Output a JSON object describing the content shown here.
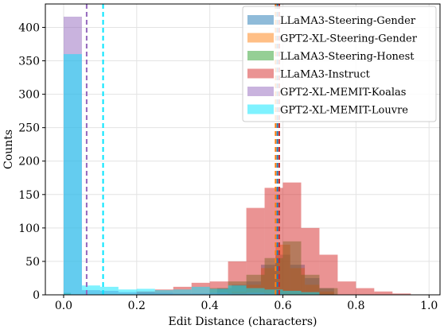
{
  "chart_data": {
    "type": "bar",
    "xlabel": "Edit Distance (characters)",
    "ylabel": "Counts",
    "xlim": [
      -0.05,
      1.03
    ],
    "ylim": [
      0,
      435
    ],
    "xticks": [
      0.0,
      0.2,
      0.4,
      0.6,
      0.8,
      1.0
    ],
    "xtick_labels": [
      "0.0",
      "0.2",
      "0.4",
      "0.6",
      "0.8",
      "1.0"
    ],
    "yticks": [
      0,
      50,
      100,
      150,
      200,
      250,
      300,
      350,
      400
    ],
    "ytick_labels": [
      "0",
      "50",
      "100",
      "150",
      "200",
      "250",
      "300",
      "350",
      "400"
    ],
    "grid": true,
    "legend_position": "top-right",
    "series": [
      {
        "name": "LLaMA3-Steering-Gender",
        "color": "#1f77b4",
        "mean": 0.585,
        "bins": [
          [
            0.42,
            0.46,
            10
          ],
          [
            0.46,
            0.5,
            15
          ],
          [
            0.5,
            0.54,
            20
          ],
          [
            0.54,
            0.58,
            45
          ],
          [
            0.58,
            0.62,
            60
          ],
          [
            0.62,
            0.66,
            45
          ],
          [
            0.66,
            0.7,
            25
          ],
          [
            0.7,
            0.74,
            10
          ]
        ]
      },
      {
        "name": "GPT2-XL-Steering-Gender",
        "color": "#ff7f0e",
        "mean": 0.58,
        "bins": [
          [
            0.46,
            0.5,
            5
          ],
          [
            0.5,
            0.54,
            15
          ],
          [
            0.54,
            0.58,
            40
          ],
          [
            0.58,
            0.62,
            75
          ],
          [
            0.62,
            0.66,
            40
          ],
          [
            0.66,
            0.7,
            15
          ],
          [
            0.7,
            0.74,
            5
          ]
        ]
      },
      {
        "name": "LLaMA3-Steering-Honest",
        "color": "#2ca02c",
        "mean": 0.59,
        "bins": [
          [
            0.0,
            0.02,
            3
          ],
          [
            0.4,
            0.45,
            10
          ],
          [
            0.45,
            0.5,
            20
          ],
          [
            0.5,
            0.55,
            30
          ],
          [
            0.55,
            0.6,
            55
          ],
          [
            0.6,
            0.65,
            80
          ],
          [
            0.65,
            0.7,
            30
          ],
          [
            0.7,
            0.75,
            10
          ]
        ]
      },
      {
        "name": "LLaMA3-Instruct",
        "color": "#d62728",
        "mean": 0.59,
        "bins": [
          [
            0.2,
            0.25,
            5
          ],
          [
            0.25,
            0.3,
            8
          ],
          [
            0.3,
            0.35,
            12
          ],
          [
            0.35,
            0.4,
            18
          ],
          [
            0.4,
            0.45,
            20
          ],
          [
            0.45,
            0.5,
            50
          ],
          [
            0.5,
            0.55,
            130
          ],
          [
            0.55,
            0.6,
            160
          ],
          [
            0.6,
            0.65,
            168
          ],
          [
            0.65,
            0.7,
            100
          ],
          [
            0.7,
            0.75,
            60
          ],
          [
            0.75,
            0.8,
            20
          ],
          [
            0.8,
            0.85,
            10
          ],
          [
            0.85,
            0.9,
            5
          ],
          [
            0.9,
            0.95,
            2
          ]
        ]
      },
      {
        "name": "GPT2-XL-MEMIT-Koalas",
        "color": "#9467bd",
        "mean": 0.063,
        "bins": [
          [
            0.0,
            0.05,
            416
          ],
          [
            0.05,
            0.1,
            7
          ],
          [
            0.1,
            0.15,
            6
          ],
          [
            0.15,
            0.2,
            4
          ],
          [
            0.2,
            0.25,
            4
          ],
          [
            0.25,
            0.3,
            3
          ],
          [
            0.3,
            0.35,
            2
          ],
          [
            0.35,
            0.4,
            2
          ],
          [
            0.4,
            0.45,
            3
          ],
          [
            0.45,
            0.5,
            2
          ],
          [
            0.5,
            0.55,
            3
          ],
          [
            0.55,
            0.6,
            2
          ]
        ]
      },
      {
        "name": "GPT2-XL-MEMIT-Louvre",
        "color": "#00e5ff",
        "mean": 0.108,
        "bins": [
          [
            0.0,
            0.05,
            360
          ],
          [
            0.05,
            0.1,
            14
          ],
          [
            0.1,
            0.15,
            12
          ],
          [
            0.15,
            0.2,
            8
          ],
          [
            0.2,
            0.25,
            9
          ],
          [
            0.25,
            0.3,
            7
          ],
          [
            0.3,
            0.35,
            8
          ],
          [
            0.35,
            0.4,
            12
          ],
          [
            0.4,
            0.45,
            9
          ],
          [
            0.45,
            0.5,
            14
          ],
          [
            0.5,
            0.55,
            10
          ],
          [
            0.55,
            0.6,
            8
          ],
          [
            0.6,
            0.65,
            6
          ],
          [
            0.65,
            0.7,
            4
          ]
        ]
      }
    ]
  }
}
